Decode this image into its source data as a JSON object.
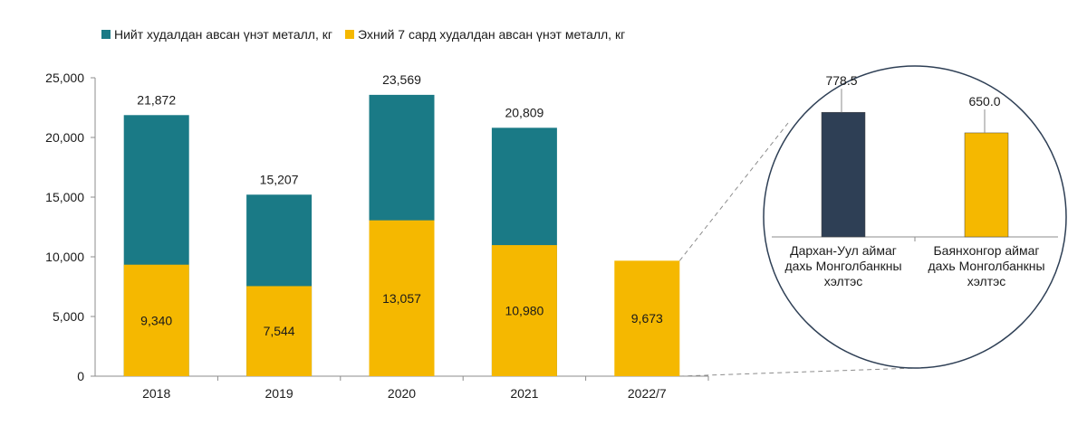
{
  "chart_data": [
    {
      "type": "bar",
      "stacked": false,
      "overlapped": true,
      "categories": [
        "2018",
        "2019",
        "2020",
        "2021",
        "2022/7"
      ],
      "series": [
        {
          "name": "Нийт худалдан авсан үнэт металл, кг",
          "color": "#1a7a86",
          "values": [
            21872,
            15207,
            23569,
            20809,
            null
          ],
          "labels": [
            "21,872",
            "15,207",
            "23,569",
            "20,809",
            ""
          ]
        },
        {
          "name": "Эхний 7 сард худалдан авсан үнэт металл, кг",
          "color": "#f5b800",
          "values": [
            9340,
            7544,
            13057,
            10980,
            9673
          ],
          "labels": [
            "9,340",
            "7,544",
            "13,057",
            "10,980",
            "9,673"
          ]
        }
      ],
      "yticks": [
        "0",
        "5,000",
        "10,000",
        "15,000",
        "20,000",
        "25,000"
      ],
      "ylim": [
        0,
        25000
      ],
      "legend": "top-left",
      "grid": false
    },
    {
      "type": "bar",
      "categories": [
        [
          "Дархан-Уул аймаг",
          "дахь Монголбанкны",
          "хэлтэс"
        ],
        [
          "Баянхонгор аймаг",
          "дахь Монголбанкны",
          "хэлтэс"
        ]
      ],
      "values": [
        778.5,
        650.0
      ],
      "labels": [
        "778.5",
        "650.0"
      ],
      "colors": [
        "#2e3f55",
        "#f5b800"
      ],
      "ylim": [
        0,
        1000
      ]
    }
  ]
}
